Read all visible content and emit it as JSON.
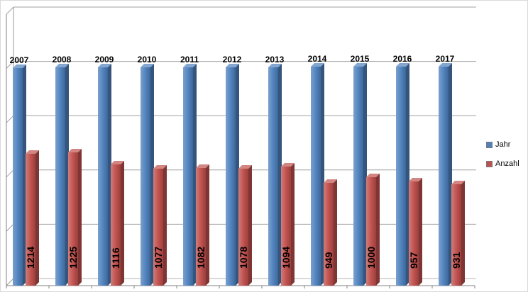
{
  "chart_data": {
    "type": "bar",
    "variant": "3d-clustered-column",
    "title": "",
    "xlabel": "",
    "ylabel": "",
    "categories": [
      "2007",
      "2008",
      "2009",
      "2010",
      "2011",
      "2012",
      "2013",
      "2014",
      "2015",
      "2016",
      "2017"
    ],
    "series": [
      {
        "name": "Jahr",
        "color": "#4F81BD",
        "values": [
          2007,
          2008,
          2009,
          2010,
          2011,
          2012,
          2013,
          2014,
          2015,
          2016,
          2017
        ],
        "data_labels_position": "above-horizontal"
      },
      {
        "name": "Anzahl",
        "color": "#C0504D",
        "values": [
          1214,
          1225,
          1116,
          1077,
          1082,
          1078,
          1094,
          949,
          1000,
          957,
          931
        ],
        "data_labels_position": "inside-end-vertical"
      }
    ],
    "ylim": [
      0,
      2500
    ],
    "grid_step": 500,
    "grid": true,
    "axis_tick_labels_visible": false,
    "legend_position": "right"
  }
}
